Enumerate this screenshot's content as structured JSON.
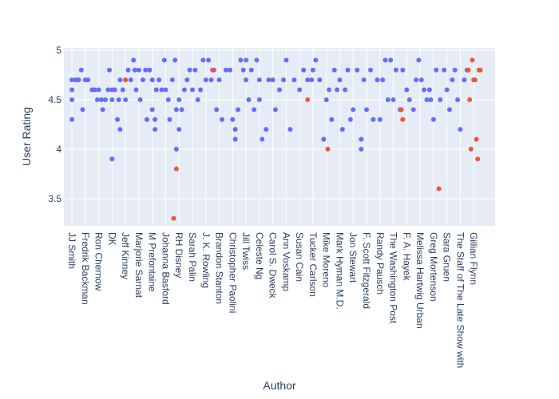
{
  "chart_data": {
    "type": "scatter",
    "xlabel": "Author",
    "ylabel": "User Rating",
    "ylim": [
      3.2,
      5.0
    ],
    "yticks": [
      3.5,
      4,
      4.5,
      5
    ],
    "ytick_labels": [
      "3.5",
      "4",
      "4.5",
      "5"
    ],
    "grid": true,
    "x_tick_labels": [
      "JJ Smith",
      "Fredrik Backman",
      "Ron Chernow",
      "DK",
      "Jeff Kinney",
      "Marjorie Sarnat",
      "M Prefontaine",
      "Johanna Basford",
      "RH Disney",
      "Sarah Palin",
      "J. K. Rowling",
      "Brandon Stanton",
      "Christopher Paolini",
      "Jill Twiss",
      "Celeste Ng",
      "Carol S. Dweck",
      "Ann Voskamp",
      "Susan Cain",
      "Tucker Carlson",
      "Mike Moreno",
      "Mark Hyman M.D.",
      "Jon Stewart",
      "F. Scott Fitzgerald",
      "Randy Pausch",
      "The Washington Post",
      "F. A. Hayek",
      "Melissa Hartwig Urban",
      "Greg Mortenson",
      "Sara Gruen",
      "The Staff of The Late Show with",
      "Gillian Flynn"
    ],
    "colors": {
      "series_a": "#636efa",
      "series_b": "#ef553b",
      "plot_bg": "#e5ecf6",
      "grid": "#ffffff",
      "text": "#2a3f5f"
    },
    "series": [
      {
        "color": "#636efa",
        "points": [
          [
            0,
            4.7
          ],
          [
            0,
            4.6
          ],
          [
            0,
            4.5
          ],
          [
            0,
            4.3
          ],
          [
            0.3,
            4.7
          ],
          [
            0.5,
            4.7
          ],
          [
            0.7,
            4.8
          ],
          [
            0.8,
            4.4
          ],
          [
            1,
            4.7
          ],
          [
            1.2,
            4.7
          ],
          [
            1.5,
            4.6
          ],
          [
            1.7,
            4.6
          ],
          [
            1.9,
            4.5
          ],
          [
            2,
            4.6
          ],
          [
            2.2,
            4.5
          ],
          [
            2.3,
            4.4
          ],
          [
            2.5,
            4.5
          ],
          [
            2.7,
            4.6
          ],
          [
            2.8,
            4.8
          ],
          [
            3,
            4.6
          ],
          [
            3,
            4.5
          ],
          [
            3,
            3.9
          ],
          [
            3.2,
            4.6
          ],
          [
            3.4,
            4.3
          ],
          [
            3.5,
            4.5
          ],
          [
            3.6,
            4.7
          ],
          [
            3.6,
            4.2
          ],
          [
            3.8,
            4.6
          ],
          [
            4,
            4.7
          ],
          [
            4,
            4.5
          ],
          [
            4.2,
            4.8
          ],
          [
            4.4,
            4.7
          ],
          [
            4.6,
            4.9
          ],
          [
            4.7,
            4.8
          ],
          [
            4.8,
            4.6
          ],
          [
            5,
            4.8
          ],
          [
            5.1,
            4.5
          ],
          [
            5.3,
            4.7
          ],
          [
            5.5,
            4.8
          ],
          [
            5.6,
            4.3
          ],
          [
            5.8,
            4.8
          ],
          [
            6,
            4.7
          ],
          [
            6,
            4.4
          ],
          [
            6.2,
            4.3
          ],
          [
            6.2,
            4.2
          ],
          [
            6.3,
            4.6
          ],
          [
            6.5,
            4.7
          ],
          [
            6.7,
            4.6
          ],
          [
            6.9,
            4.9
          ],
          [
            7,
            4.6
          ],
          [
            7.2,
            4.5
          ],
          [
            7.3,
            4.3
          ],
          [
            7.5,
            4.7
          ],
          [
            7.7,
            4.9
          ],
          [
            7.8,
            4.4
          ],
          [
            7.8,
            4.0
          ],
          [
            8,
            4.5
          ],
          [
            8,
            4.2
          ],
          [
            8.2,
            4.4
          ],
          [
            8.4,
            4.6
          ],
          [
            8.6,
            4.7
          ],
          [
            8.8,
            4.8
          ],
          [
            9,
            4.6
          ],
          [
            9.2,
            4.8
          ],
          [
            9.4,
            4.5
          ],
          [
            9.6,
            4.6
          ],
          [
            9.8,
            4.9
          ],
          [
            10,
            4.7
          ],
          [
            10.2,
            4.9
          ],
          [
            10.4,
            4.7
          ],
          [
            10.6,
            4.8
          ],
          [
            10.8,
            4.4
          ],
          [
            11,
            4.7
          ],
          [
            11.2,
            4.3
          ],
          [
            11.5,
            4.8
          ],
          [
            11.8,
            4.8
          ],
          [
            12,
            4.3
          ],
          [
            12.2,
            4.2
          ],
          [
            12.2,
            4.1
          ],
          [
            12.4,
            4.4
          ],
          [
            12.6,
            4.9
          ],
          [
            12.8,
            4.8
          ],
          [
            13,
            4.9
          ],
          [
            13,
            4.7
          ],
          [
            13.2,
            4.5
          ],
          [
            13.4,
            4.8
          ],
          [
            13.6,
            4.4
          ],
          [
            13.8,
            4.9
          ],
          [
            14,
            4.7
          ],
          [
            14,
            4.5
          ],
          [
            14.2,
            4.1
          ],
          [
            14.5,
            4.2
          ],
          [
            14.7,
            4.7
          ],
          [
            15,
            4.7
          ],
          [
            15.2,
            4.4
          ],
          [
            15.5,
            4.6
          ],
          [
            15.8,
            4.7
          ],
          [
            16,
            4.9
          ],
          [
            16.3,
            4.2
          ],
          [
            16.6,
            4.7
          ],
          [
            17,
            4.6
          ],
          [
            17.3,
            4.8
          ],
          [
            17.6,
            4.7
          ],
          [
            17.9,
            4.7
          ],
          [
            18,
            4.8
          ],
          [
            18.2,
            4.9
          ],
          [
            18.5,
            4.7
          ],
          [
            18.8,
            4.1
          ],
          [
            19,
            4.5
          ],
          [
            19.2,
            4.6
          ],
          [
            19.4,
            4.3
          ],
          [
            19.6,
            4.8
          ],
          [
            19.8,
            4.6
          ],
          [
            20,
            4.7
          ],
          [
            20.2,
            4.2
          ],
          [
            20.4,
            4.6
          ],
          [
            20.6,
            4.8
          ],
          [
            20.8,
            4.3
          ],
          [
            21,
            4.4
          ],
          [
            21.3,
            4.8
          ],
          [
            21.6,
            4.1
          ],
          [
            21.6,
            4.0
          ],
          [
            21.8,
            4.7
          ],
          [
            22,
            4.4
          ],
          [
            22.3,
            4.8
          ],
          [
            22.5,
            4.3
          ],
          [
            22.8,
            4.7
          ],
          [
            23,
            4.3
          ],
          [
            23.2,
            4.7
          ],
          [
            23.4,
            4.9
          ],
          [
            23.6,
            4.5
          ],
          [
            23.8,
            4.9
          ],
          [
            24,
            4.5
          ],
          [
            24.2,
            4.8
          ],
          [
            24.5,
            4.4
          ],
          [
            24.7,
            4.8
          ],
          [
            25,
            4.6
          ],
          [
            25.2,
            4.5
          ],
          [
            25.5,
            4.4
          ],
          [
            25.7,
            4.7
          ],
          [
            25.9,
            4.9
          ],
          [
            26.1,
            4.7
          ],
          [
            26.3,
            4.6
          ],
          [
            26.5,
            4.5
          ],
          [
            26.7,
            4.6
          ],
          [
            26.8,
            4.5
          ],
          [
            27,
            4.3
          ],
          [
            27.2,
            4.8
          ],
          [
            27.5,
            4.5
          ],
          [
            27.8,
            4.8
          ],
          [
            28,
            4.6
          ],
          [
            28.2,
            4.4
          ],
          [
            28.4,
            4.7
          ],
          [
            28.6,
            4.8
          ],
          [
            28.8,
            4.5
          ],
          [
            29,
            4.2
          ],
          [
            29.3,
            4.7
          ],
          [
            29.5,
            4.8
          ]
        ]
      },
      {
        "color": "#ef553b",
        "points": [
          [
            4.0,
            4.7
          ],
          [
            7.6,
            3.3
          ],
          [
            7.8,
            3.8
          ],
          [
            10.5,
            4.8
          ],
          [
            17.6,
            4.5
          ],
          [
            19.1,
            4.0
          ],
          [
            24.6,
            4.4
          ],
          [
            24.7,
            4.3
          ],
          [
            27.4,
            3.6
          ],
          [
            29.6,
            4.8
          ],
          [
            29.7,
            4.5
          ],
          [
            29.8,
            4.0
          ],
          [
            29.9,
            4.9
          ],
          [
            30.0,
            4.7
          ],
          [
            30.1,
            4.7
          ],
          [
            30.2,
            4.1
          ],
          [
            30.3,
            3.9
          ],
          [
            30.4,
            4.8
          ],
          [
            30.5,
            4.8
          ]
        ]
      }
    ]
  }
}
